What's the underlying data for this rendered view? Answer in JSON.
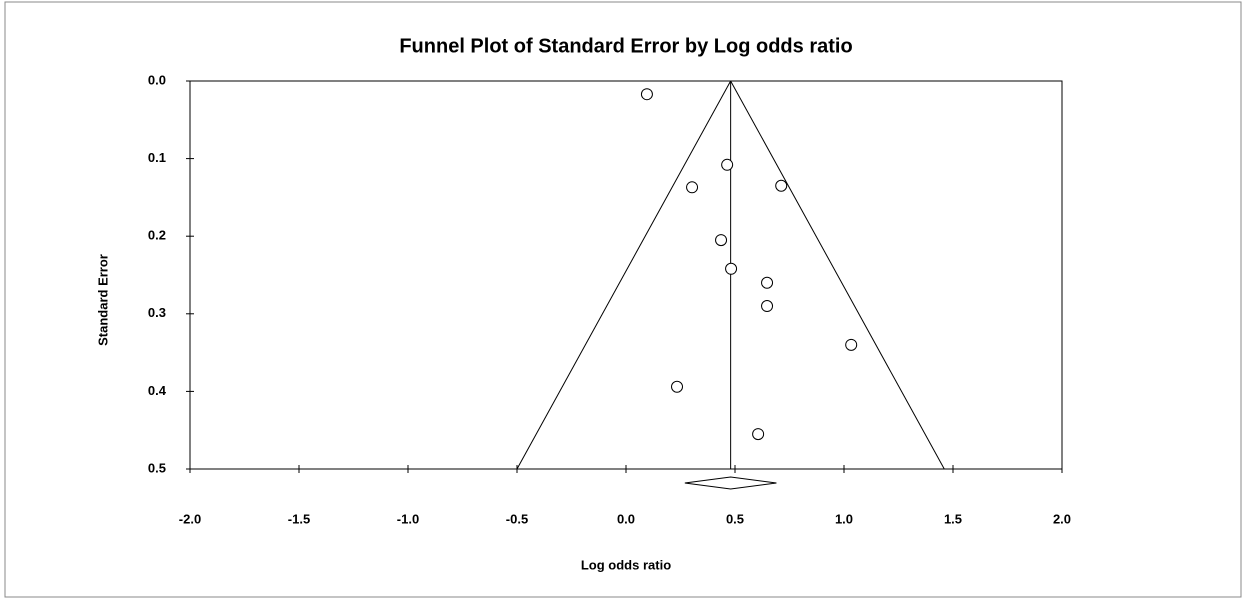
{
  "chart_data": {
    "type": "funnel",
    "title": "Funnel Plot of Standard Error by Log odds ratio",
    "x_label": "Log odds ratio",
    "y_label": "Standard Error",
    "x": [
      0.096,
      0.464,
      0.303,
      0.712,
      0.436,
      0.482,
      0.647,
      0.647,
      1.033,
      0.234,
      0.606
    ],
    "values": [
      0.017,
      0.108,
      0.137,
      0.135,
      0.205,
      0.242,
      0.26,
      0.29,
      0.34,
      0.394,
      0.455
    ],
    "summary": {
      "estimate": 0.48,
      "ci": [
        0.27,
        0.69
      ]
    },
    "funnel": {
      "apex": 0.48,
      "base": [
        -0.5,
        1.46
      ]
    },
    "xlim": [
      -2.0,
      2.0
    ],
    "xticks": [
      {
        "value": -2.0,
        "label": "-2.0"
      },
      -1.5,
      {
        "value": -1.0,
        "label": "-1.0"
      },
      -0.5,
      {
        "value": 0.0,
        "label": "0.0"
      },
      0.5,
      {
        "value": 1.0,
        "label": "1.0"
      },
      1.5,
      {
        "value": 2.0,
        "label": "2.0"
      }
    ],
    "ylim": [
      0.0,
      0.5
    ],
    "y_reversed": true,
    "yticks": [
      {
        "value": 0.0,
        "label": "0.0"
      },
      0.1,
      0.2,
      0.3,
      0.4,
      0.5
    ],
    "color": "#000000"
  }
}
